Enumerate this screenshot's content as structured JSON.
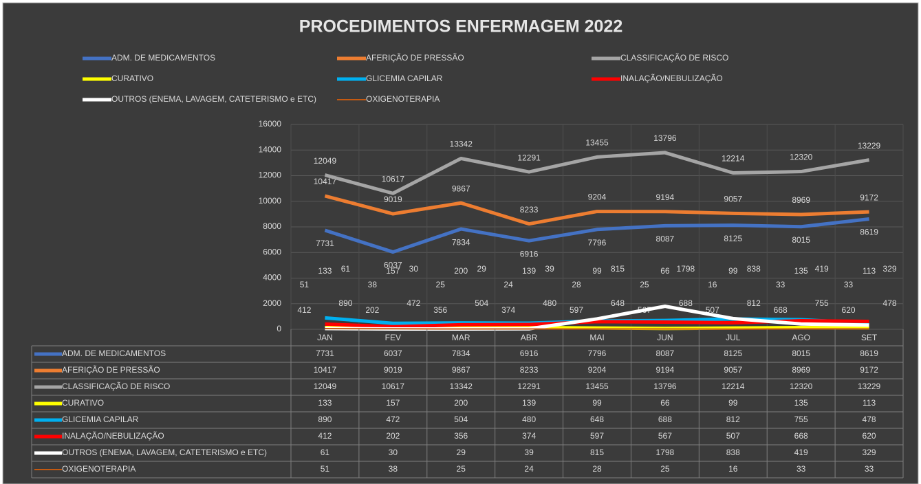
{
  "chart_data": {
    "type": "line",
    "title": "PROCEDIMENTOS ENFERMAGEM 2022",
    "categories": [
      "JAN",
      "FEV",
      "MAR",
      "ABR",
      "MAI",
      "JUN",
      "JUL",
      "AGO",
      "SET"
    ],
    "ylim": [
      0,
      16000
    ],
    "yticks": [
      0,
      2000,
      4000,
      6000,
      8000,
      10000,
      12000,
      14000,
      16000
    ],
    "grid": true,
    "series": [
      {
        "name": "ADM. DE MEDICAMENTOS",
        "color": "#4472c4",
        "values": [
          7731,
          6037,
          7834,
          6916,
          7796,
          8087,
          8125,
          8015,
          8619
        ]
      },
      {
        "name": "AFERIÇÃO DE PRESSÃO",
        "color": "#ed7d31",
        "values": [
          10417,
          9019,
          9867,
          8233,
          9204,
          9194,
          9057,
          8969,
          9172
        ]
      },
      {
        "name": "CLASSIFICAÇÃO DE RISCO",
        "color": "#a5a5a5",
        "values": [
          12049,
          10617,
          13342,
          12291,
          13455,
          13796,
          12214,
          12320,
          13229
        ]
      },
      {
        "name": "CURATIVO",
        "color": "#ffff00",
        "values": [
          133,
          157,
          200,
          139,
          99,
          66,
          99,
          135,
          113
        ]
      },
      {
        "name": "GLICEMIA CAPILAR",
        "color": "#00b0f0",
        "values": [
          890,
          472,
          504,
          480,
          648,
          688,
          812,
          755,
          478
        ]
      },
      {
        "name": "INALAÇÃO/NEBULIZAÇÃO",
        "color": "#ff0000",
        "values": [
          412,
          202,
          356,
          374,
          597,
          567,
          507,
          668,
          620
        ]
      },
      {
        "name": "OUTROS (ENEMA, LAVAGEM, CATETERISMO e ETC)",
        "color": "#ffffff",
        "values": [
          61,
          30,
          29,
          39,
          815,
          1798,
          838,
          419,
          329
        ]
      },
      {
        "name": "OXIGENOTERAPIA",
        "color": "#c55a11",
        "values": [
          51,
          38,
          25,
          24,
          28,
          25,
          16,
          33,
          33
        ]
      }
    ]
  }
}
